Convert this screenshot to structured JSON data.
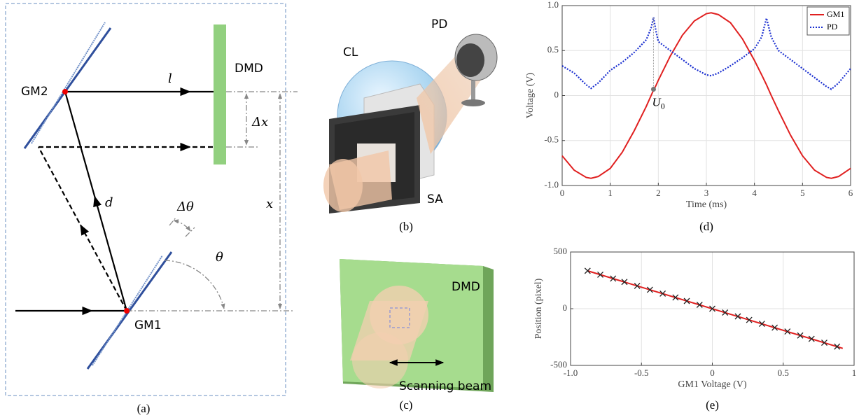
{
  "chart_data": [
    {
      "type": "line",
      "caption": "(d)",
      "xlabel": "Time (ms)",
      "ylabel": "Voltage (V)",
      "x": [
        0,
        0.25,
        0.5,
        0.6,
        0.75,
        1,
        1.25,
        1.5,
        1.75,
        1.85,
        1.9,
        1.95,
        2.0,
        2.25,
        2.5,
        2.75,
        3.0,
        3.1,
        3.25,
        3.5,
        3.75,
        4.0,
        4.15,
        4.25,
        4.35,
        4.5,
        4.75,
        5.0,
        5.25,
        5.5,
        5.6,
        5.75,
        6.0
      ],
      "series": [
        {
          "name": "GM1",
          "color": "#e02020",
          "dash": false,
          "values": [
            -0.67,
            -0.83,
            -0.91,
            -0.92,
            -0.9,
            -0.81,
            -0.63,
            -0.39,
            -0.12,
            0.0,
            0.06,
            0.11,
            0.17,
            0.44,
            0.67,
            0.83,
            0.91,
            0.92,
            0.9,
            0.81,
            0.63,
            0.39,
            0.23,
            0.12,
            0.0,
            -0.17,
            -0.44,
            -0.67,
            -0.83,
            -0.91,
            -0.92,
            -0.9,
            -0.81
          ]
        },
        {
          "name": "PD",
          "color": "#1a2fd0",
          "dash": true,
          "values": [
            0.33,
            0.25,
            0.12,
            0.08,
            0.14,
            0.28,
            0.37,
            0.48,
            0.62,
            0.75,
            0.87,
            0.72,
            0.6,
            0.5,
            0.4,
            0.3,
            0.23,
            0.22,
            0.25,
            0.33,
            0.42,
            0.52,
            0.65,
            0.86,
            0.65,
            0.5,
            0.4,
            0.3,
            0.2,
            0.1,
            0.07,
            0.14,
            0.3
          ]
        }
      ],
      "annotation": {
        "text": "U",
        "subscript": "0",
        "x": 1.9,
        "y": 0.07,
        "peak": 0.87
      },
      "xlim": [
        0,
        6
      ],
      "xticks": [
        0,
        1,
        2,
        3,
        4,
        5,
        6
      ],
      "ylim": [
        -1,
        1
      ],
      "yticks": [
        {
          "value": -1,
          "label": "-1.0"
        },
        -0.5,
        0,
        0.5,
        {
          "value": 1,
          "label": "1.0"
        }
      ],
      "grid": true,
      "legend": "upper-right"
    },
    {
      "type": "scatter",
      "caption": "(e)",
      "xlabel": "GM1 Voltage (V)",
      "ylabel": "Position (pixel)",
      "series": [
        {
          "mode": "line",
          "color": "#e02020",
          "x": [
            -0.88,
            0.92
          ],
          "values": [
            334,
            -350
          ]
        },
        {
          "mode": "marker",
          "color": "#222222",
          "x": [
            -0.88,
            -0.79,
            -0.7,
            -0.62,
            -0.53,
            -0.44,
            -0.35,
            -0.26,
            -0.18,
            -0.09,
            0.0,
            0.09,
            0.18,
            0.26,
            0.35,
            0.44,
            0.53,
            0.62,
            0.7,
            0.79,
            0.88
          ],
          "values": [
            334,
            300,
            266,
            236,
            201,
            167,
            133,
            99,
            68,
            34,
            0,
            -34,
            -68,
            -99,
            -133,
            -167,
            -201,
            -236,
            -266,
            -300,
            -334
          ]
        }
      ],
      "xlim": [
        -1,
        1
      ],
      "xticks": [
        {
          "value": -1,
          "label": "-1.0"
        },
        -0.5,
        0,
        0.5,
        1
      ],
      "ylim": [
        -500,
        500
      ],
      "yticks": [
        -500,
        0,
        500
      ],
      "grid": true
    }
  ],
  "panel_a": {
    "caption": "(a)",
    "gm2": "GM2",
    "dmd": "DMD",
    "l": "l",
    "dx": "Δx",
    "d": "d",
    "x": "x",
    "dtheta": "Δθ",
    "theta": "θ",
    "gm1": "GM1"
  },
  "panel_b": {
    "caption": "(b)",
    "pd": "PD",
    "cl": "CL",
    "sa": "SA"
  },
  "panel_c": {
    "caption": "(c)",
    "dmd": "DMD",
    "beam": "Scanning beam"
  }
}
